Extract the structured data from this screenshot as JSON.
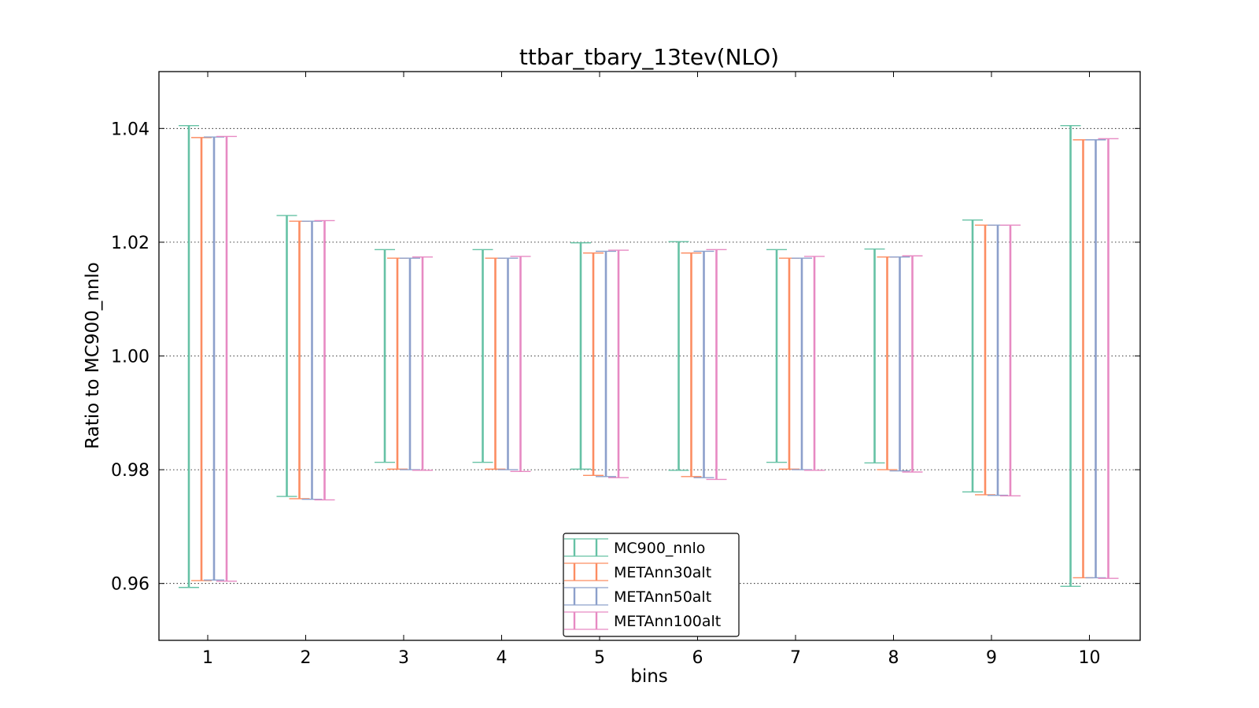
{
  "chart_data": {
    "type": "errorbar",
    "title": "ttbar_tbary_13tev(NLO)",
    "xlabel": "bins",
    "ylabel": "Ratio to MC900_nnlo",
    "ylim": [
      0.95,
      1.05
    ],
    "yticks": [
      "0.96",
      "0.98",
      "1.00",
      "1.02",
      "1.04"
    ],
    "categories": [
      "1",
      "2",
      "3",
      "4",
      "5",
      "6",
      "7",
      "8",
      "9",
      "10"
    ],
    "grid": "horizontal dotted",
    "legend_position": "lower-center",
    "series": [
      {
        "name": "MC900_nnlo",
        "color": "#66c2a5",
        "lower": [
          0.9593,
          0.9753,
          0.9813,
          0.9813,
          0.9801,
          0.9799,
          0.9813,
          0.9812,
          0.9761,
          0.9595
        ],
        "upper": [
          1.0405,
          1.0247,
          1.0187,
          1.0187,
          1.0199,
          1.0201,
          1.0187,
          1.0188,
          1.0239,
          1.0405
        ]
      },
      {
        "name": "METAnn30alt",
        "color": "#fc8d62",
        "lower": [
          0.9605,
          0.9749,
          0.9801,
          0.9801,
          0.979,
          0.9788,
          0.9801,
          0.98,
          0.9756,
          0.961
        ],
        "upper": [
          1.0384,
          1.0237,
          1.0172,
          1.0172,
          1.0181,
          1.0181,
          1.0172,
          1.0174,
          1.023,
          1.038
        ]
      },
      {
        "name": "METAnn50alt",
        "color": "#8da0cb",
        "lower": [
          0.9606,
          0.9748,
          0.98,
          0.98,
          0.9788,
          0.9786,
          0.98,
          0.9798,
          0.9755,
          0.961
        ],
        "upper": [
          1.0385,
          1.0237,
          1.0172,
          1.0172,
          1.0184,
          1.0184,
          1.0172,
          1.0174,
          1.023,
          1.038
        ]
      },
      {
        "name": "METAnn100alt",
        "color": "#e78ac3",
        "lower": [
          0.9604,
          0.9747,
          0.9799,
          0.9797,
          0.9786,
          0.9783,
          0.9799,
          0.9796,
          0.9754,
          0.9609
        ],
        "upper": [
          1.0386,
          1.0238,
          1.0174,
          1.0175,
          1.0186,
          1.0187,
          1.0175,
          1.0176,
          1.023,
          1.0382
        ]
      }
    ]
  }
}
